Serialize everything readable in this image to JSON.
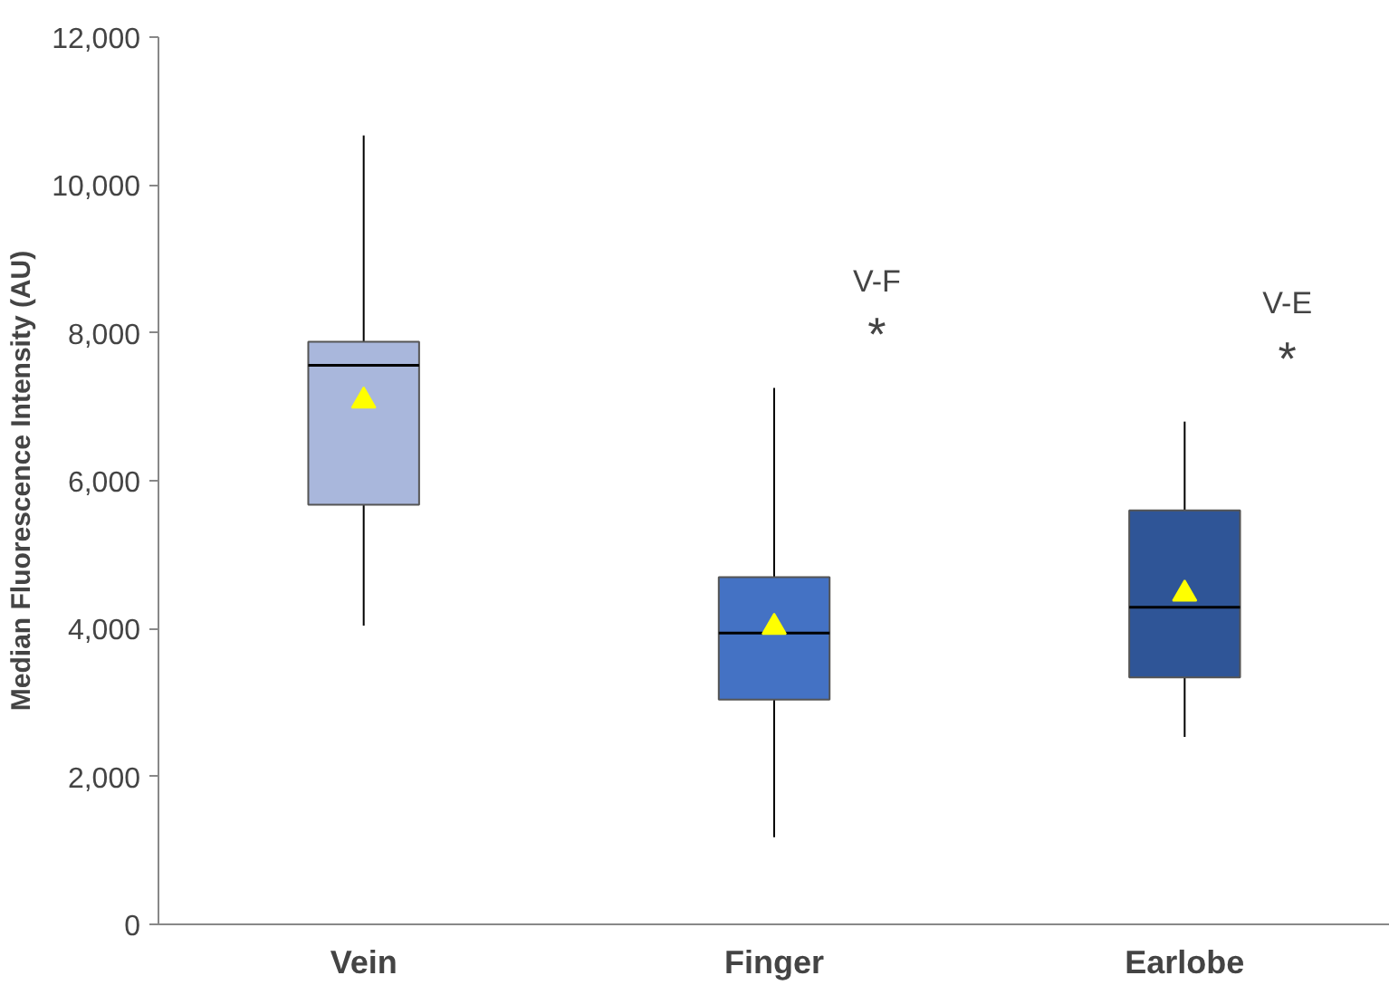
{
  "chart_data": {
    "type": "box",
    "ylabel": "Median Fluorescence Intensity (AU)",
    "categories": [
      "Vein",
      "Finger",
      "Earlobe"
    ],
    "colors": [
      "#a9b7dc",
      "#4472c4",
      "#2f5597"
    ],
    "boxes": [
      {
        "low": 4040,
        "q1": 5675,
        "median": 7560,
        "q3": 7880,
        "high": 10670,
        "mean": 7080
      },
      {
        "low": 1180,
        "q1": 3040,
        "median": 3940,
        "q3": 4695,
        "high": 7255,
        "mean": 4020
      },
      {
        "low": 2535,
        "q1": 3340,
        "median": 4290,
        "q3": 5600,
        "high": 6800,
        "mean": 4470
      }
    ],
    "ylim": [
      0,
      12000
    ],
    "yticks": [
      {
        "value": 0,
        "label": "0"
      },
      {
        "value": 2000,
        "label": "2,000"
      },
      {
        "value": 4000,
        "label": "4,000"
      },
      {
        "value": 6000,
        "label": "6,000"
      },
      {
        "value": 8000,
        "label": "8,000"
      },
      {
        "value": 10000,
        "label": "10,000"
      },
      {
        "value": 12000,
        "label": "12,000"
      }
    ],
    "grid": false,
    "annotations": [
      "V-F",
      "*",
      "V-E",
      "*"
    ]
  }
}
